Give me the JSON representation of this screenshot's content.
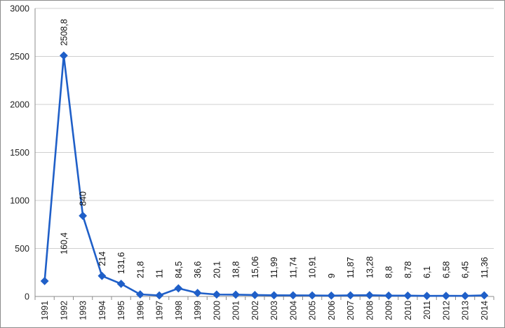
{
  "chart_data": {
    "type": "line",
    "title": "",
    "xlabel": "",
    "ylabel": "",
    "ylim": [
      0,
      3000
    ],
    "yticks": [
      0,
      500,
      1000,
      1500,
      2000,
      2500,
      3000
    ],
    "grid": true,
    "legend": "none",
    "categories": [
      "1991",
      "1992",
      "1993",
      "1994",
      "1995",
      "1996",
      "1997",
      "1998",
      "1999",
      "2000",
      "2001",
      "2002",
      "2003",
      "2004",
      "2005",
      "2006",
      "2007",
      "2008",
      "2009",
      "2010",
      "2011",
      "2012",
      "2013",
      "2014"
    ],
    "series": [
      {
        "color": "#1f5fc8",
        "values": [
          160.4,
          2508.8,
          840,
          214,
          131.6,
          21.8,
          11,
          84.5,
          36.6,
          20.1,
          18.8,
          15.06,
          11.99,
          11.74,
          10.91,
          9,
          11.87,
          13.28,
          8.8,
          8.78,
          6.1,
          6.58,
          6.45,
          11.36
        ],
        "labels": [
          "160,4",
          "2508,8",
          "840",
          "214",
          "131,6",
          "21,8",
          "11",
          "84,5",
          "36,6",
          "20,1",
          "18,8",
          "15,06",
          "11,99",
          "11,74",
          "10,91",
          "9",
          "11,87",
          "13,28",
          "8,8",
          "8,78",
          "6,1",
          "6,58",
          "6,45",
          "11,36"
        ]
      }
    ]
  }
}
